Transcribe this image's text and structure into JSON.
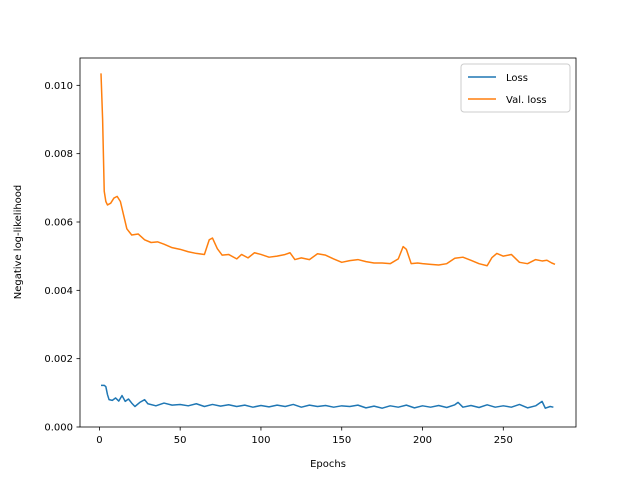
{
  "chart_data": {
    "type": "line",
    "xlabel": "Epochs",
    "ylabel": "Negative log-likelihood",
    "xlim": [
      -12,
      295
    ],
    "ylim": [
      0.0,
      0.0108
    ],
    "xticks": [
      0,
      50,
      100,
      150,
      200,
      250
    ],
    "xtick_labels": [
      "0",
      "50",
      "100",
      "150",
      "200",
      "250"
    ],
    "yticks": [
      0.0,
      0.002,
      0.004,
      0.006,
      0.008,
      0.01
    ],
    "ytick_labels": [
      "0.000",
      "0.002",
      "0.004",
      "0.006",
      "0.008",
      "0.010"
    ],
    "grid": false,
    "legend_position": "top-right",
    "series": [
      {
        "name": "Loss",
        "color": "#1f77b4",
        "points": [
          [
            1,
            0.00122
          ],
          [
            3,
            0.00122
          ],
          [
            4,
            0.00118
          ],
          [
            5,
            0.00095
          ],
          [
            6,
            0.0008
          ],
          [
            8,
            0.00078
          ],
          [
            10,
            0.00085
          ],
          [
            12,
            0.00076
          ],
          [
            14,
            0.00092
          ],
          [
            16,
            0.00075
          ],
          [
            18,
            0.00082
          ],
          [
            20,
            0.0007
          ],
          [
            22,
            0.0006
          ],
          [
            25,
            0.00072
          ],
          [
            28,
            0.0008
          ],
          [
            30,
            0.00068
          ],
          [
            35,
            0.00062
          ],
          [
            40,
            0.0007
          ],
          [
            45,
            0.00064
          ],
          [
            50,
            0.00066
          ],
          [
            55,
            0.00062
          ],
          [
            60,
            0.00068
          ],
          [
            65,
            0.0006
          ],
          [
            70,
            0.00066
          ],
          [
            75,
            0.00061
          ],
          [
            80,
            0.00065
          ],
          [
            85,
            0.0006
          ],
          [
            90,
            0.00064
          ],
          [
            95,
            0.00058
          ],
          [
            100,
            0.00063
          ],
          [
            105,
            0.00059
          ],
          [
            110,
            0.00064
          ],
          [
            115,
            0.0006
          ],
          [
            120,
            0.00066
          ],
          [
            125,
            0.00058
          ],
          [
            130,
            0.00064
          ],
          [
            135,
            0.0006
          ],
          [
            140,
            0.00063
          ],
          [
            145,
            0.00058
          ],
          [
            150,
            0.00062
          ],
          [
            155,
            0.0006
          ],
          [
            160,
            0.00064
          ],
          [
            165,
            0.00056
          ],
          [
            170,
            0.00061
          ],
          [
            175,
            0.00055
          ],
          [
            180,
            0.00062
          ],
          [
            185,
            0.00058
          ],
          [
            190,
            0.00064
          ],
          [
            195,
            0.00056
          ],
          [
            200,
            0.00062
          ],
          [
            205,
            0.00058
          ],
          [
            210,
            0.00063
          ],
          [
            215,
            0.00057
          ],
          [
            220,
            0.00065
          ],
          [
            222,
            0.00072
          ],
          [
            225,
            0.00058
          ],
          [
            230,
            0.00063
          ],
          [
            235,
            0.00057
          ],
          [
            240,
            0.00065
          ],
          [
            245,
            0.00058
          ],
          [
            250,
            0.00062
          ],
          [
            255,
            0.00058
          ],
          [
            260,
            0.00066
          ],
          [
            265,
            0.00056
          ],
          [
            270,
            0.00062
          ],
          [
            274,
            0.00075
          ],
          [
            276,
            0.00055
          ],
          [
            279,
            0.0006
          ],
          [
            281,
            0.00058
          ]
        ]
      },
      {
        "name": "Val. loss",
        "color": "#ff7f0e",
        "points": [
          [
            1,
            0.01035
          ],
          [
            2,
            0.009
          ],
          [
            3,
            0.0069
          ],
          [
            4,
            0.0066
          ],
          [
            5,
            0.0065
          ],
          [
            7,
            0.00655
          ],
          [
            9,
            0.0067
          ],
          [
            11,
            0.00675
          ],
          [
            13,
            0.0066
          ],
          [
            15,
            0.0062
          ],
          [
            17,
            0.0058
          ],
          [
            20,
            0.00562
          ],
          [
            24,
            0.00565
          ],
          [
            28,
            0.00548
          ],
          [
            32,
            0.0054
          ],
          [
            36,
            0.00542
          ],
          [
            40,
            0.00535
          ],
          [
            45,
            0.00525
          ],
          [
            50,
            0.0052
          ],
          [
            55,
            0.00513
          ],
          [
            60,
            0.00508
          ],
          [
            65,
            0.00505
          ],
          [
            68,
            0.00548
          ],
          [
            70,
            0.00553
          ],
          [
            73,
            0.00522
          ],
          [
            76,
            0.00503
          ],
          [
            80,
            0.00505
          ],
          [
            85,
            0.00492
          ],
          [
            88,
            0.00505
          ],
          [
            92,
            0.00495
          ],
          [
            96,
            0.0051
          ],
          [
            100,
            0.00505
          ],
          [
            105,
            0.00497
          ],
          [
            110,
            0.005
          ],
          [
            115,
            0.00505
          ],
          [
            118,
            0.0051
          ],
          [
            121,
            0.0049
          ],
          [
            125,
            0.00495
          ],
          [
            130,
            0.0049
          ],
          [
            135,
            0.00507
          ],
          [
            140,
            0.00503
          ],
          [
            145,
            0.00492
          ],
          [
            150,
            0.00482
          ],
          [
            155,
            0.00487
          ],
          [
            160,
            0.0049
          ],
          [
            165,
            0.00484
          ],
          [
            170,
            0.0048
          ],
          [
            175,
            0.0048
          ],
          [
            180,
            0.00478
          ],
          [
            185,
            0.00492
          ],
          [
            188,
            0.00528
          ],
          [
            190,
            0.0052
          ],
          [
            193,
            0.00478
          ],
          [
            197,
            0.0048
          ],
          [
            200,
            0.00478
          ],
          [
            205,
            0.00476
          ],
          [
            210,
            0.00474
          ],
          [
            215,
            0.00478
          ],
          [
            220,
            0.00494
          ],
          [
            225,
            0.00497
          ],
          [
            230,
            0.00488
          ],
          [
            235,
            0.00478
          ],
          [
            240,
            0.00472
          ],
          [
            243,
            0.00496
          ],
          [
            246,
            0.00508
          ],
          [
            250,
            0.005
          ],
          [
            255,
            0.00505
          ],
          [
            260,
            0.00482
          ],
          [
            265,
            0.00478
          ],
          [
            270,
            0.0049
          ],
          [
            274,
            0.00486
          ],
          [
            277,
            0.00488
          ],
          [
            280,
            0.0048
          ],
          [
            282,
            0.00476
          ]
        ]
      }
    ]
  }
}
